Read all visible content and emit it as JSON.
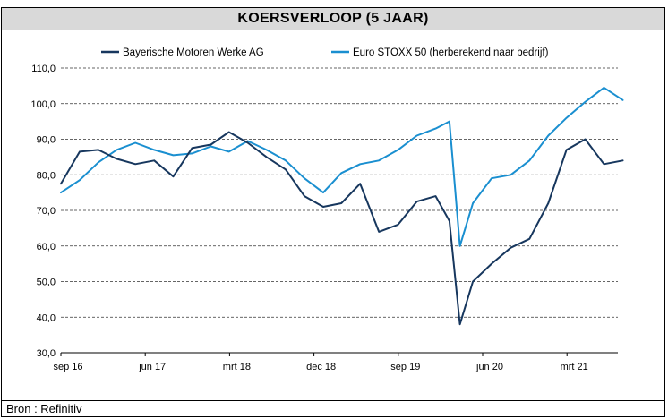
{
  "title": "KOERSVERLOOP (5 JAAR)",
  "source": "Bron : Refinitiv",
  "chart_data": {
    "type": "line",
    "title": "KOERSVERLOOP (5 JAAR)",
    "xlabel": "",
    "ylabel": "",
    "x_ticks": [
      "sep 16",
      "jun 17",
      "mrt 18",
      "dec 18",
      "sep 19",
      "jun 20",
      "mrt 21"
    ],
    "y_ticks": [
      "30,0",
      "40,0",
      "50,0",
      "60,0",
      "70,0",
      "80,0",
      "90,0",
      "100,0",
      "110,0"
    ],
    "ylim": [
      30,
      110
    ],
    "grid": "horizontal-dashed",
    "legend_position": "top",
    "x_dates": [
      "2016-09-01",
      "2016-11-01",
      "2017-01-01",
      "2017-03-01",
      "2017-05-01",
      "2017-07-01",
      "2017-09-01",
      "2017-11-01",
      "2018-01-01",
      "2018-03-01",
      "2018-05-01",
      "2018-07-01",
      "2018-09-01",
      "2018-11-01",
      "2019-01-01",
      "2019-03-01",
      "2019-05-01",
      "2019-07-01",
      "2019-09-01",
      "2019-11-01",
      "2020-01-01",
      "2020-02-15",
      "2020-03-20",
      "2020-05-01",
      "2020-07-01",
      "2020-09-01",
      "2020-11-01",
      "2021-01-01",
      "2021-03-01",
      "2021-05-01",
      "2021-07-01",
      "2021-08-31"
    ],
    "series": [
      {
        "name": "Bayerische Motoren Werke AG",
        "color": "#17375e",
        "values": [
          77.5,
          86.5,
          87.0,
          84.5,
          83.0,
          84.0,
          79.5,
          87.5,
          88.5,
          92.0,
          89.0,
          85.0,
          81.5,
          74.0,
          71.0,
          72.0,
          77.5,
          64.0,
          66.0,
          72.5,
          74.0,
          67.0,
          38.0,
          50.0,
          55.0,
          59.5,
          62.0,
          72.0,
          87.0,
          90.0,
          83.0,
          84.0
        ]
      },
      {
        "name": "Euro STOXX 50 (herberekend naar bedrijf)",
        "color": "#1a8fd0",
        "values": [
          75.0,
          78.5,
          83.5,
          87.0,
          89.0,
          87.0,
          85.5,
          86.0,
          88.0,
          86.5,
          89.5,
          87.0,
          84.0,
          79.0,
          75.0,
          80.5,
          83.0,
          84.0,
          87.0,
          91.0,
          93.0,
          95.0,
          60.0,
          72.0,
          79.0,
          80.0,
          84.0,
          91.0,
          96.0,
          100.5,
          104.5,
          101.0
        ]
      }
    ]
  }
}
